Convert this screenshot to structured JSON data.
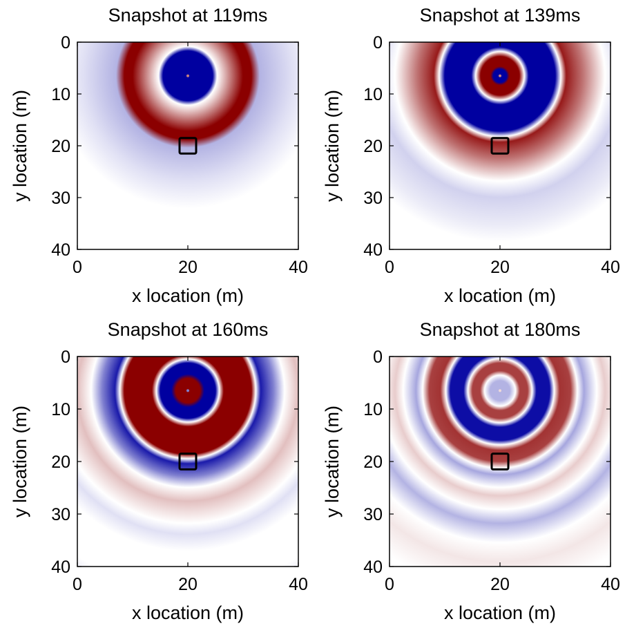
{
  "chart_data": [
    {
      "type": "heatmap",
      "title": "Snapshot at 119ms",
      "xlabel": "x location (m)",
      "ylabel": "y location (m)",
      "xlim": [
        0,
        40
      ],
      "ylim": [
        0,
        40
      ],
      "xticks": [
        "0",
        "20",
        "40"
      ],
      "yticks": [
        "0",
        "10",
        "20",
        "30",
        "40"
      ],
      "colormap": {
        "negative": "#0000a0",
        "zero": "#ffffff",
        "positive": "#8b0000"
      },
      "source": [
        20,
        6.5
      ],
      "target_box": {
        "x": [
          18.5,
          21.5
        ],
        "y": [
          18.5,
          21.5
        ]
      },
      "rings": [
        {
          "r": 0.5,
          "value": -1.0
        },
        {
          "r": 4.5,
          "value": -1.0
        },
        {
          "r": 5.3,
          "value": 0.0
        },
        {
          "r": 10.0,
          "value": 1.0
        },
        {
          "r": 11.5,
          "value": 1.0
        },
        {
          "r": 13.0,
          "value": -0.3
        },
        {
          "r": 19.0,
          "value": -0.12
        },
        {
          "r": 24.0,
          "value": 0.0
        }
      ]
    },
    {
      "type": "heatmap",
      "title": "Snapshot at 139ms",
      "xlabel": "x location (m)",
      "ylabel": "y location (m)",
      "xlim": [
        0,
        40
      ],
      "ylim": [
        0,
        40
      ],
      "xticks": [
        "0",
        "20",
        "40"
      ],
      "yticks": [
        "0",
        "10",
        "20",
        "30",
        "40"
      ],
      "colormap": {
        "negative": "#0000a0",
        "zero": "#ffffff",
        "positive": "#8b0000"
      },
      "source": [
        20,
        6.5
      ],
      "target_box": {
        "x": [
          18.5,
          21.5
        ],
        "y": [
          18.5,
          21.5
        ]
      },
      "rings": [
        {
          "r": 1.2,
          "value": -1.0
        },
        {
          "r": 1.7,
          "value": 1.0
        },
        {
          "r": 3.5,
          "value": 1.0
        },
        {
          "r": 4.4,
          "value": 0.0
        },
        {
          "r": 5.2,
          "value": -1.0
        },
        {
          "r": 10.0,
          "value": -1.0
        },
        {
          "r": 11.0,
          "value": 0.0
        },
        {
          "r": 12.0,
          "value": 0.9
        },
        {
          "r": 15.0,
          "value": 0.55
        },
        {
          "r": 19.0,
          "value": 0.0
        },
        {
          "r": 22.0,
          "value": -0.18
        },
        {
          "r": 27.0,
          "value": -0.08
        },
        {
          "r": 30.0,
          "value": 0.0
        }
      ]
    },
    {
      "type": "heatmap",
      "title": "Snapshot at 160ms",
      "xlabel": "x location (m)",
      "ylabel": "y location (m)",
      "xlim": [
        0,
        40
      ],
      "ylim": [
        0,
        40
      ],
      "xticks": [
        "0",
        "20",
        "40"
      ],
      "yticks": [
        "0",
        "10",
        "20",
        "30",
        "40"
      ],
      "colormap": {
        "negative": "#0000a0",
        "zero": "#ffffff",
        "positive": "#8b0000"
      },
      "source": [
        20,
        6.5
      ],
      "target_box": {
        "x": [
          18.5,
          21.5
        ],
        "y": [
          18.5,
          21.5
        ]
      },
      "rings": [
        {
          "r": 2.2,
          "value": 1.0
        },
        {
          "r": 3.0,
          "value": -1.0
        },
        {
          "r": 5.0,
          "value": -1.0
        },
        {
          "r": 5.7,
          "value": 0.0
        },
        {
          "r": 6.5,
          "value": 1.0
        },
        {
          "r": 11.5,
          "value": 1.0
        },
        {
          "r": 12.3,
          "value": 0.0
        },
        {
          "r": 13.2,
          "value": -0.9
        },
        {
          "r": 15.5,
          "value": -0.5
        },
        {
          "r": 17.5,
          "value": 0.0
        },
        {
          "r": 20.0,
          "value": 0.25
        },
        {
          "r": 24.0,
          "value": 0.0
        },
        {
          "r": 26.0,
          "value": -0.12
        },
        {
          "r": 29.0,
          "value": 0.0
        },
        {
          "r": 36.0,
          "value": 0.0
        },
        {
          "r": 38.0,
          "value": -0.08
        },
        {
          "r": 44.0,
          "value": 0.0
        }
      ]
    },
    {
      "type": "heatmap",
      "title": "Snapshot at 180ms",
      "xlabel": "x location (m)",
      "ylabel": "y location (m)",
      "xlim": [
        0,
        40
      ],
      "ylim": [
        0,
        40
      ],
      "xticks": [
        "0",
        "20",
        "40"
      ],
      "yticks": [
        "0",
        "10",
        "20",
        "30",
        "40"
      ],
      "colormap": {
        "negative": "#0000a0",
        "zero": "#ffffff",
        "positive": "#8b0000"
      },
      "source": [
        20,
        6.5
      ],
      "target_box": {
        "x": [
          18.5,
          21.5
        ],
        "y": [
          18.5,
          21.5
        ]
      },
      "rings": [
        {
          "r": 1.8,
          "value": -0.3
        },
        {
          "r": 2.8,
          "value": 0.0
        },
        {
          "r": 3.6,
          "value": 0.75
        },
        {
          "r": 5.0,
          "value": 0.75
        },
        {
          "r": 5.8,
          "value": 0.0
        },
        {
          "r": 6.6,
          "value": -0.95
        },
        {
          "r": 9.0,
          "value": -0.95
        },
        {
          "r": 9.8,
          "value": 0.0
        },
        {
          "r": 10.8,
          "value": 0.8
        },
        {
          "r": 12.8,
          "value": 0.75
        },
        {
          "r": 14.0,
          "value": 0.0
        },
        {
          "r": 15.2,
          "value": -0.35
        },
        {
          "r": 17.5,
          "value": 0.0
        },
        {
          "r": 19.0,
          "value": 0.2
        },
        {
          "r": 21.5,
          "value": 0.0
        },
        {
          "r": 24.0,
          "value": -0.3
        },
        {
          "r": 27.5,
          "value": 0.0
        },
        {
          "r": 31.0,
          "value": 0.1
        },
        {
          "r": 36.0,
          "value": 0.0
        }
      ]
    }
  ]
}
